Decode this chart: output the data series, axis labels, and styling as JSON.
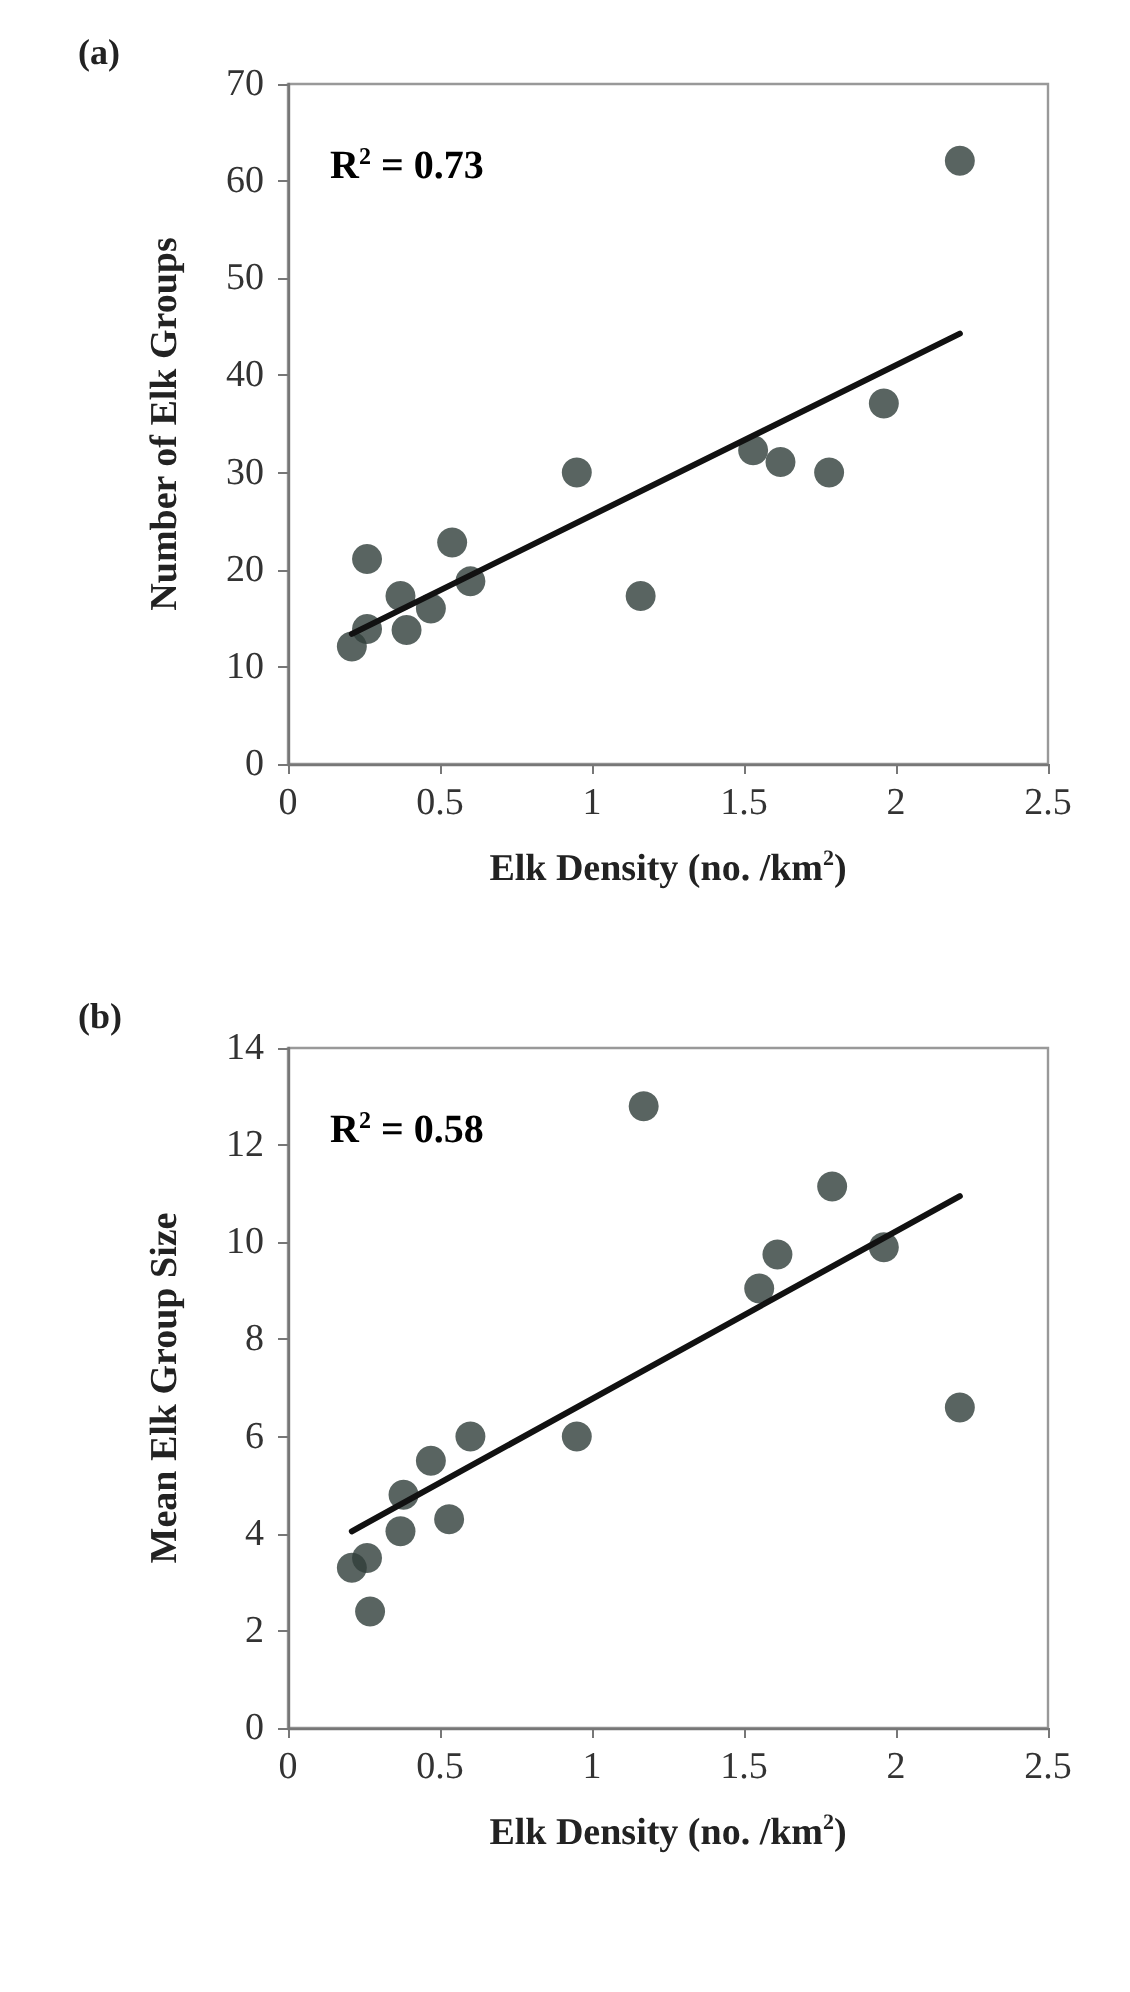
{
  "chart_data": [
    {
      "type": "scatter",
      "title": "(a)",
      "xlabel": "Elk Density (no. /km$^{2}$)",
      "ylabel": "Number of Elk Groups",
      "annotations": [
        "R$^{2}$ = 0.73"
      ],
      "xlim": [
        0,
        2.5
      ],
      "xticks": [
        0,
        0.5,
        1,
        1.5,
        2,
        2.5
      ],
      "ylim": [
        0,
        70
      ],
      "yticks": [
        0,
        10,
        20,
        30,
        40,
        50,
        60,
        70
      ],
      "grid": false,
      "marker": "circle",
      "series": [
        {
          "color": "#2f3d3a",
          "x": [
            0.21,
            0.26,
            0.26,
            0.37,
            0.39,
            0.47,
            0.54,
            0.6,
            0.95,
            1.16,
            1.53,
            1.62,
            1.78,
            1.96,
            2.21
          ],
          "values": [
            12.1,
            13.9,
            21.1,
            17.3,
            13.8,
            16.0,
            22.8,
            18.8,
            30.0,
            17.3,
            32.3,
            31.1,
            30.0,
            37.1,
            62.1
          ]
        },
        {
          "type": "line",
          "color": "#111111",
          "marker": "none",
          "line_style": "solid",
          "x": [
            0.21,
            2.21
          ],
          "values": [
            13.4,
            44.3
          ]
        }
      ]
    },
    {
      "type": "scatter",
      "title": "(b)",
      "xlabel": "Elk Density (no. /km$^{2}$)",
      "ylabel": "Mean Elk Group Size",
      "annotations": [
        "R$^{2}$ = 0.58"
      ],
      "xlim": [
        0,
        2.5
      ],
      "xticks": [
        0,
        0.5,
        1,
        1.5,
        2,
        2.5
      ],
      "ylim": [
        0,
        14
      ],
      "yticks": [
        0,
        2,
        4,
        6,
        8,
        10,
        12,
        14
      ],
      "grid": false,
      "marker": "circle",
      "series": [
        {
          "color": "#2f3d3a",
          "x": [
            0.21,
            0.26,
            0.27,
            0.38,
            0.37,
            0.47,
            0.53,
            0.6,
            0.95,
            1.17,
            1.55,
            1.61,
            1.79,
            1.96,
            2.21
          ],
          "values": [
            3.3,
            3.5,
            2.4,
            4.8,
            4.05,
            5.5,
            4.3,
            6.0,
            6.0,
            12.8,
            9.05,
            9.75,
            11.15,
            9.9,
            6.6
          ]
        },
        {
          "type": "line",
          "color": "#111111",
          "marker": "none",
          "line_style": "solid",
          "x": [
            0.21,
            2.21
          ],
          "values": [
            4.05,
            10.95
          ]
        }
      ]
    }
  ]
}
